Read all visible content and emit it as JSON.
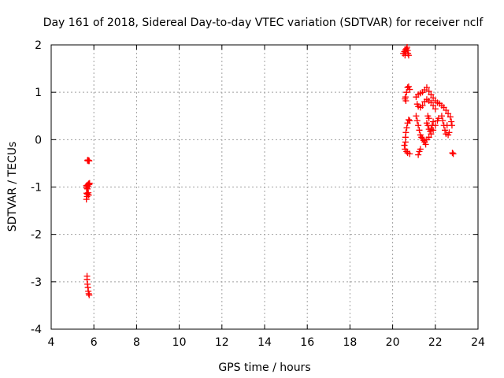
{
  "chart_data": {
    "type": "scatter",
    "title": "Day 161 of 2018, Sidereal Day-to-day VTEC variation (SDTVAR) for receiver nclf",
    "xlabel": "GPS time / hours",
    "ylabel": "SDTVAR / TECUs",
    "xlim": [
      4,
      24
    ],
    "ylim": [
      -4,
      2
    ],
    "xticks": [
      4,
      6,
      8,
      10,
      12,
      14,
      16,
      18,
      20,
      22,
      24
    ],
    "yticks": [
      -4,
      -3,
      -2,
      -1,
      0,
      1,
      2
    ],
    "grid": true,
    "marker": "+",
    "color": "#ff0000",
    "series": [
      {
        "name": "nclf",
        "points": [
          [
            5.7,
            -0.44
          ],
          [
            5.72,
            -0.43
          ],
          [
            5.74,
            -0.45
          ],
          [
            5.76,
            -0.44
          ],
          [
            5.78,
            -0.45
          ],
          [
            5.65,
            -0.97
          ],
          [
            5.68,
            -0.98
          ],
          [
            5.7,
            -0.96
          ],
          [
            5.72,
            -0.99
          ],
          [
            5.74,
            -0.94
          ],
          [
            5.76,
            -0.93
          ],
          [
            5.78,
            -0.95
          ],
          [
            5.8,
            -0.92
          ],
          [
            5.66,
            -1.02
          ],
          [
            5.7,
            -1.04
          ],
          [
            5.66,
            -1.13
          ],
          [
            5.7,
            -1.15
          ],
          [
            5.74,
            -1.12
          ],
          [
            5.76,
            -1.17
          ],
          [
            5.68,
            -1.2
          ],
          [
            5.65,
            -1.26
          ],
          [
            5.68,
            -2.88
          ],
          [
            5.68,
            -2.95
          ],
          [
            5.7,
            -3.05
          ],
          [
            5.72,
            -3.12
          ],
          [
            5.74,
            -3.2
          ],
          [
            5.76,
            -3.25
          ],
          [
            5.78,
            -3.28
          ],
          [
            20.5,
            1.82
          ],
          [
            20.55,
            1.86
          ],
          [
            20.6,
            1.9
          ],
          [
            20.65,
            1.92
          ],
          [
            20.7,
            1.88
          ],
          [
            20.72,
            1.82
          ],
          [
            20.75,
            1.78
          ],
          [
            20.58,
            1.78
          ],
          [
            20.62,
            1.85
          ],
          [
            20.68,
            1.95
          ],
          [
            20.6,
            0.9
          ],
          [
            20.65,
            1.0
          ],
          [
            20.7,
            1.1
          ],
          [
            20.75,
            1.12
          ],
          [
            20.8,
            1.06
          ],
          [
            20.62,
            0.82
          ],
          [
            20.58,
            0.86
          ],
          [
            20.6,
            -0.05
          ],
          [
            20.55,
            -0.12
          ],
          [
            20.58,
            -0.2
          ],
          [
            20.65,
            -0.25
          ],
          [
            20.7,
            -0.28
          ],
          [
            20.8,
            -0.3
          ],
          [
            20.6,
            0.05
          ],
          [
            20.62,
            0.15
          ],
          [
            20.66,
            0.25
          ],
          [
            20.7,
            0.35
          ],
          [
            20.75,
            0.42
          ],
          [
            20.8,
            0.4
          ],
          [
            21.1,
            0.9
          ],
          [
            21.2,
            0.95
          ],
          [
            21.3,
            0.98
          ],
          [
            21.4,
            1.0
          ],
          [
            21.5,
            1.05
          ],
          [
            21.6,
            1.1
          ],
          [
            21.7,
            1.02
          ],
          [
            21.8,
            0.95
          ],
          [
            21.9,
            0.88
          ],
          [
            22.0,
            0.82
          ],
          [
            22.1,
            0.78
          ],
          [
            22.2,
            0.76
          ],
          [
            22.3,
            0.72
          ],
          [
            22.4,
            0.68
          ],
          [
            22.5,
            0.62
          ],
          [
            22.6,
            0.55
          ],
          [
            22.7,
            0.48
          ],
          [
            22.75,
            0.38
          ],
          [
            22.78,
            0.3
          ],
          [
            21.15,
            0.75
          ],
          [
            21.2,
            0.7
          ],
          [
            21.3,
            0.68
          ],
          [
            21.4,
            0.72
          ],
          [
            21.5,
            0.8
          ],
          [
            21.6,
            0.85
          ],
          [
            21.7,
            0.82
          ],
          [
            21.8,
            0.78
          ],
          [
            21.9,
            0.72
          ],
          [
            22.0,
            0.65
          ],
          [
            21.1,
            0.5
          ],
          [
            21.15,
            0.4
          ],
          [
            21.2,
            0.3
          ],
          [
            21.25,
            0.2
          ],
          [
            21.3,
            0.1
          ],
          [
            21.35,
            0.05
          ],
          [
            21.4,
            0.02
          ],
          [
            21.45,
            -0.02
          ],
          [
            21.5,
            -0.05
          ],
          [
            21.55,
            -0.1
          ],
          [
            21.3,
            -0.2
          ],
          [
            21.25,
            -0.25
          ],
          [
            21.2,
            -0.32
          ],
          [
            21.6,
            0.0
          ],
          [
            21.7,
            0.05
          ],
          [
            21.8,
            0.12
          ],
          [
            21.9,
            0.2
          ],
          [
            22.0,
            0.3
          ],
          [
            22.1,
            0.4
          ],
          [
            22.15,
            0.45
          ],
          [
            21.6,
            0.35
          ],
          [
            21.65,
            0.3
          ],
          [
            21.7,
            0.22
          ],
          [
            21.75,
            0.18
          ],
          [
            21.8,
            0.22
          ],
          [
            21.85,
            0.3
          ],
          [
            21.9,
            0.38
          ],
          [
            21.7,
            0.45
          ],
          [
            21.65,
            0.5
          ],
          [
            22.3,
            0.5
          ],
          [
            22.35,
            0.4
          ],
          [
            22.4,
            0.3
          ],
          [
            22.45,
            0.2
          ],
          [
            22.5,
            0.12
          ],
          [
            22.6,
            0.1
          ],
          [
            22.65,
            0.15
          ],
          [
            22.55,
            0.3
          ],
          [
            22.8,
            -0.28
          ],
          [
            22.84,
            -0.3
          ]
        ]
      }
    ]
  }
}
